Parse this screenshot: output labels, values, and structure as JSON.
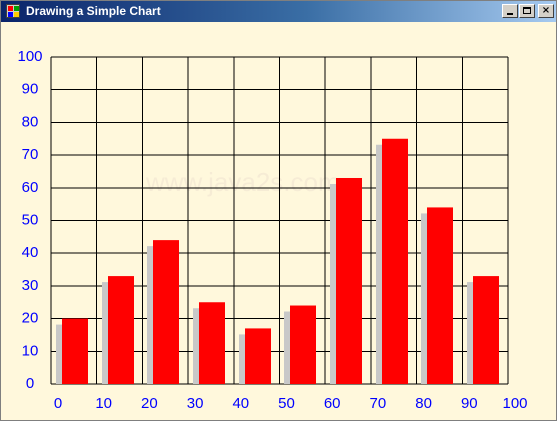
{
  "window": {
    "title": "Drawing a Simple Chart",
    "controls": {
      "minimize": "",
      "maximize": "",
      "close": "×"
    }
  },
  "chart_data": {
    "type": "bar",
    "title": "",
    "xlabel": "",
    "ylabel": "",
    "categories": [
      "0",
      "10",
      "20",
      "30",
      "40",
      "50",
      "60",
      "70",
      "80",
      "90"
    ],
    "series": [
      {
        "values": [
          20,
          33,
          44,
          25,
          17,
          24,
          63,
          75,
          54,
          33
        ],
        "color": "#ff0000",
        "shadow_color": "#c8c8c8"
      }
    ],
    "x_ticks": [
      "0",
      "10",
      "20",
      "30",
      "40",
      "50",
      "60",
      "70",
      "80",
      "90",
      "100"
    ],
    "y_ticks": [
      "0",
      "10",
      "20",
      "30",
      "40",
      "50",
      "60",
      "70",
      "80",
      "90",
      "100"
    ],
    "xlim": [
      0,
      100
    ],
    "ylim": [
      0,
      100
    ],
    "grid": true,
    "tick_label_color": "#0000ff",
    "grid_color": "#000000",
    "background": "#fff8dc"
  },
  "watermark": {
    "text": "www.java2s.com",
    "color": "#f0e3d1"
  }
}
